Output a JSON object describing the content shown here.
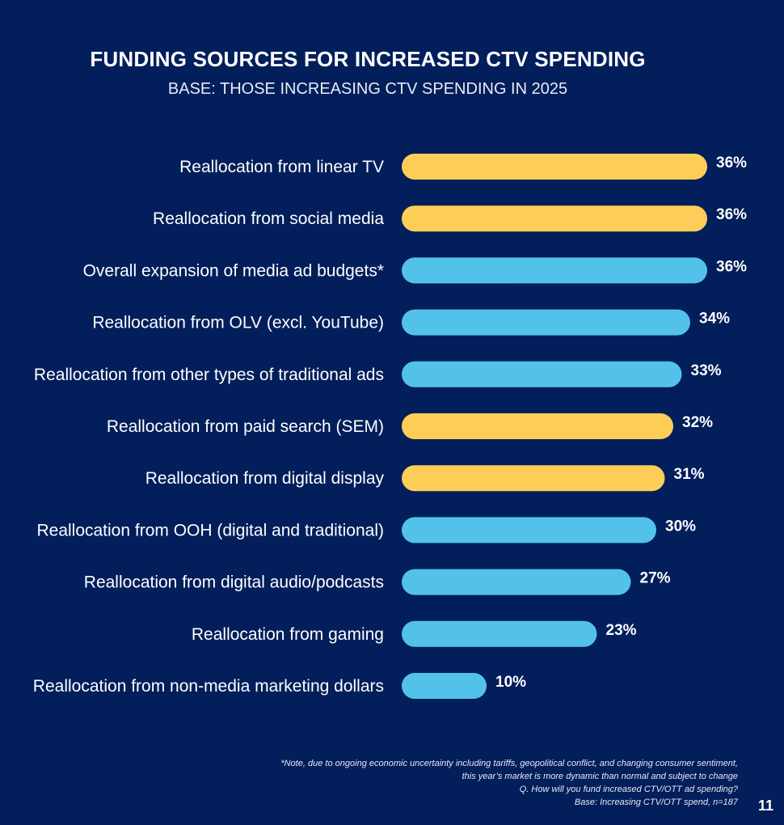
{
  "colors": {
    "background": "#021E5B",
    "highlight": "#FCCE57",
    "default": "#53C2EB",
    "text": "#FFFFFF"
  },
  "chart_data": {
    "type": "bar",
    "orientation": "horizontal",
    "title": "FUNDING SOURCES FOR INCREASED CTV SPENDING",
    "subtitle": "BASE: THOSE INCREASING CTV SPENDING IN 2025",
    "categories": [
      "Reallocation from linear TV",
      "Reallocation from social media",
      "Overall expansion of media ad budgets*",
      "Reallocation from OLV (excl. YouTube)",
      "Reallocation from other types of traditional ads",
      "Reallocation from paid search (SEM)",
      "Reallocation from digital display",
      "Reallocation from OOH (digital and traditional)",
      "Reallocation from digital audio/podcasts",
      "Reallocation from gaming",
      "Reallocation from non-media marketing dollars"
    ],
    "values": [
      36,
      36,
      36,
      34,
      33,
      32,
      31,
      30,
      27,
      23,
      10
    ],
    "value_labels": [
      "36%",
      "36%",
      "36%",
      "34%",
      "33%",
      "32%",
      "31%",
      "30%",
      "27%",
      "23%",
      "10%"
    ],
    "bar_colors": [
      "highlight",
      "highlight",
      "default",
      "default",
      "default",
      "highlight",
      "highlight",
      "default",
      "default",
      "default",
      "default"
    ],
    "xlim": [
      0,
      40
    ],
    "grid": false,
    "legend": "none"
  },
  "notes": [
    "*Note, due to ongoing economic uncertainty including tariffs, geopolitical conflict, and changing consumer sentiment,",
    "this year’s market is more dynamic than normal and subject to change",
    "Q. How will you fund increased CTV/OTT ad spending?",
    "Base: Increasing CTV/OTT spend, n=187"
  ],
  "page_number": "11"
}
